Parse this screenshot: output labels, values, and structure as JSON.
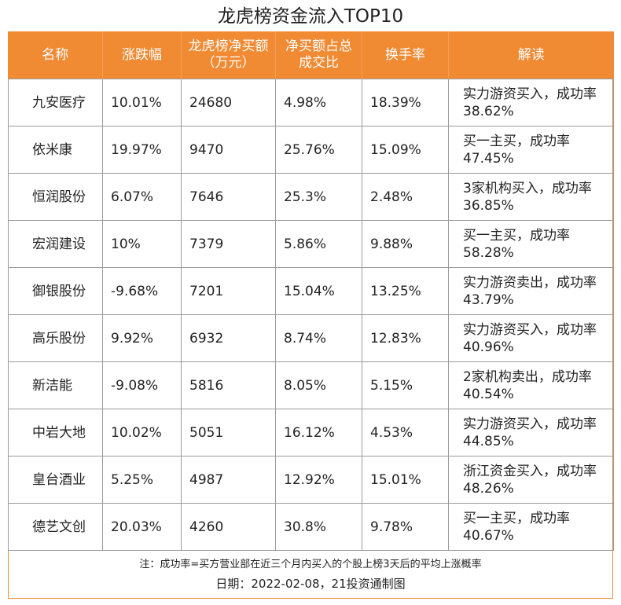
{
  "title": "龙虎榜资金流入TOP10",
  "headers": [
    "名称",
    "涨跌幅",
    "龙虎榜净买额（万元）",
    "净买额占总成交比",
    "换手率",
    "解读"
  ],
  "rows": [
    {
      "name": "九安医疗",
      "change": "10.01%",
      "net_buy": "24680",
      "ratio": "4.98%",
      "turnover": "18.39%",
      "interp": "实力游资买入，成功率38.62%"
    },
    {
      "name": "依米康",
      "change": "19.97%",
      "net_buy": "9470",
      "ratio": "25.76%",
      "turnover": "15.09%",
      "interp": "买一主买，成功率47.45%"
    },
    {
      "name": "恒润股份",
      "change": "6.07%",
      "net_buy": "7646",
      "ratio": "25.3%",
      "turnover": "2.48%",
      "interp": "3家机构买入，成功率36.85%"
    },
    {
      "name": "宏润建设",
      "change": "10%",
      "net_buy": "7379",
      "ratio": "5.86%",
      "turnover": "9.88%",
      "interp": "买一主买，成功率58.28%"
    },
    {
      "name": "御银股份",
      "change": "-9.68%",
      "net_buy": "7201",
      "ratio": "15.04%",
      "turnover": "13.25%",
      "interp": "实力游资卖出，成功率43.79%"
    },
    {
      "name": "高乐股份",
      "change": "9.92%",
      "net_buy": "6932",
      "ratio": "8.74%",
      "turnover": "12.83%",
      "interp": "实力游资买入，成功率40.96%"
    },
    {
      "name": "新洁能",
      "change": "-9.08%",
      "net_buy": "5816",
      "ratio": "8.05%",
      "turnover": "5.15%",
      "interp": "2家机构卖出，成功率40.54%"
    },
    {
      "name": "中岩大地",
      "change": "10.02%",
      "net_buy": "5051",
      "ratio": "16.12%",
      "turnover": "4.53%",
      "interp": "实力游资买入，成功率44.85%"
    },
    {
      "name": "皇台酒业",
      "change": "5.25%",
      "net_buy": "4987",
      "ratio": "12.92%",
      "turnover": "15.01%",
      "interp": "浙江资金买入，成功率48.26%"
    },
    {
      "name": "德艺文创",
      "change": "20.03%",
      "net_buy": "4260",
      "ratio": "30.8%",
      "turnover": "9.78%",
      "interp": "买一主买，成功率40.67%"
    }
  ],
  "note": "注：成功率=买方营业部在近三个月内买入的个股上榜3天后的平均上涨概率",
  "date": "日期：2022-02-08，21投资通制图",
  "colors": {
    "header_bg": "#f08a33",
    "border": "#9a9a9a"
  }
}
